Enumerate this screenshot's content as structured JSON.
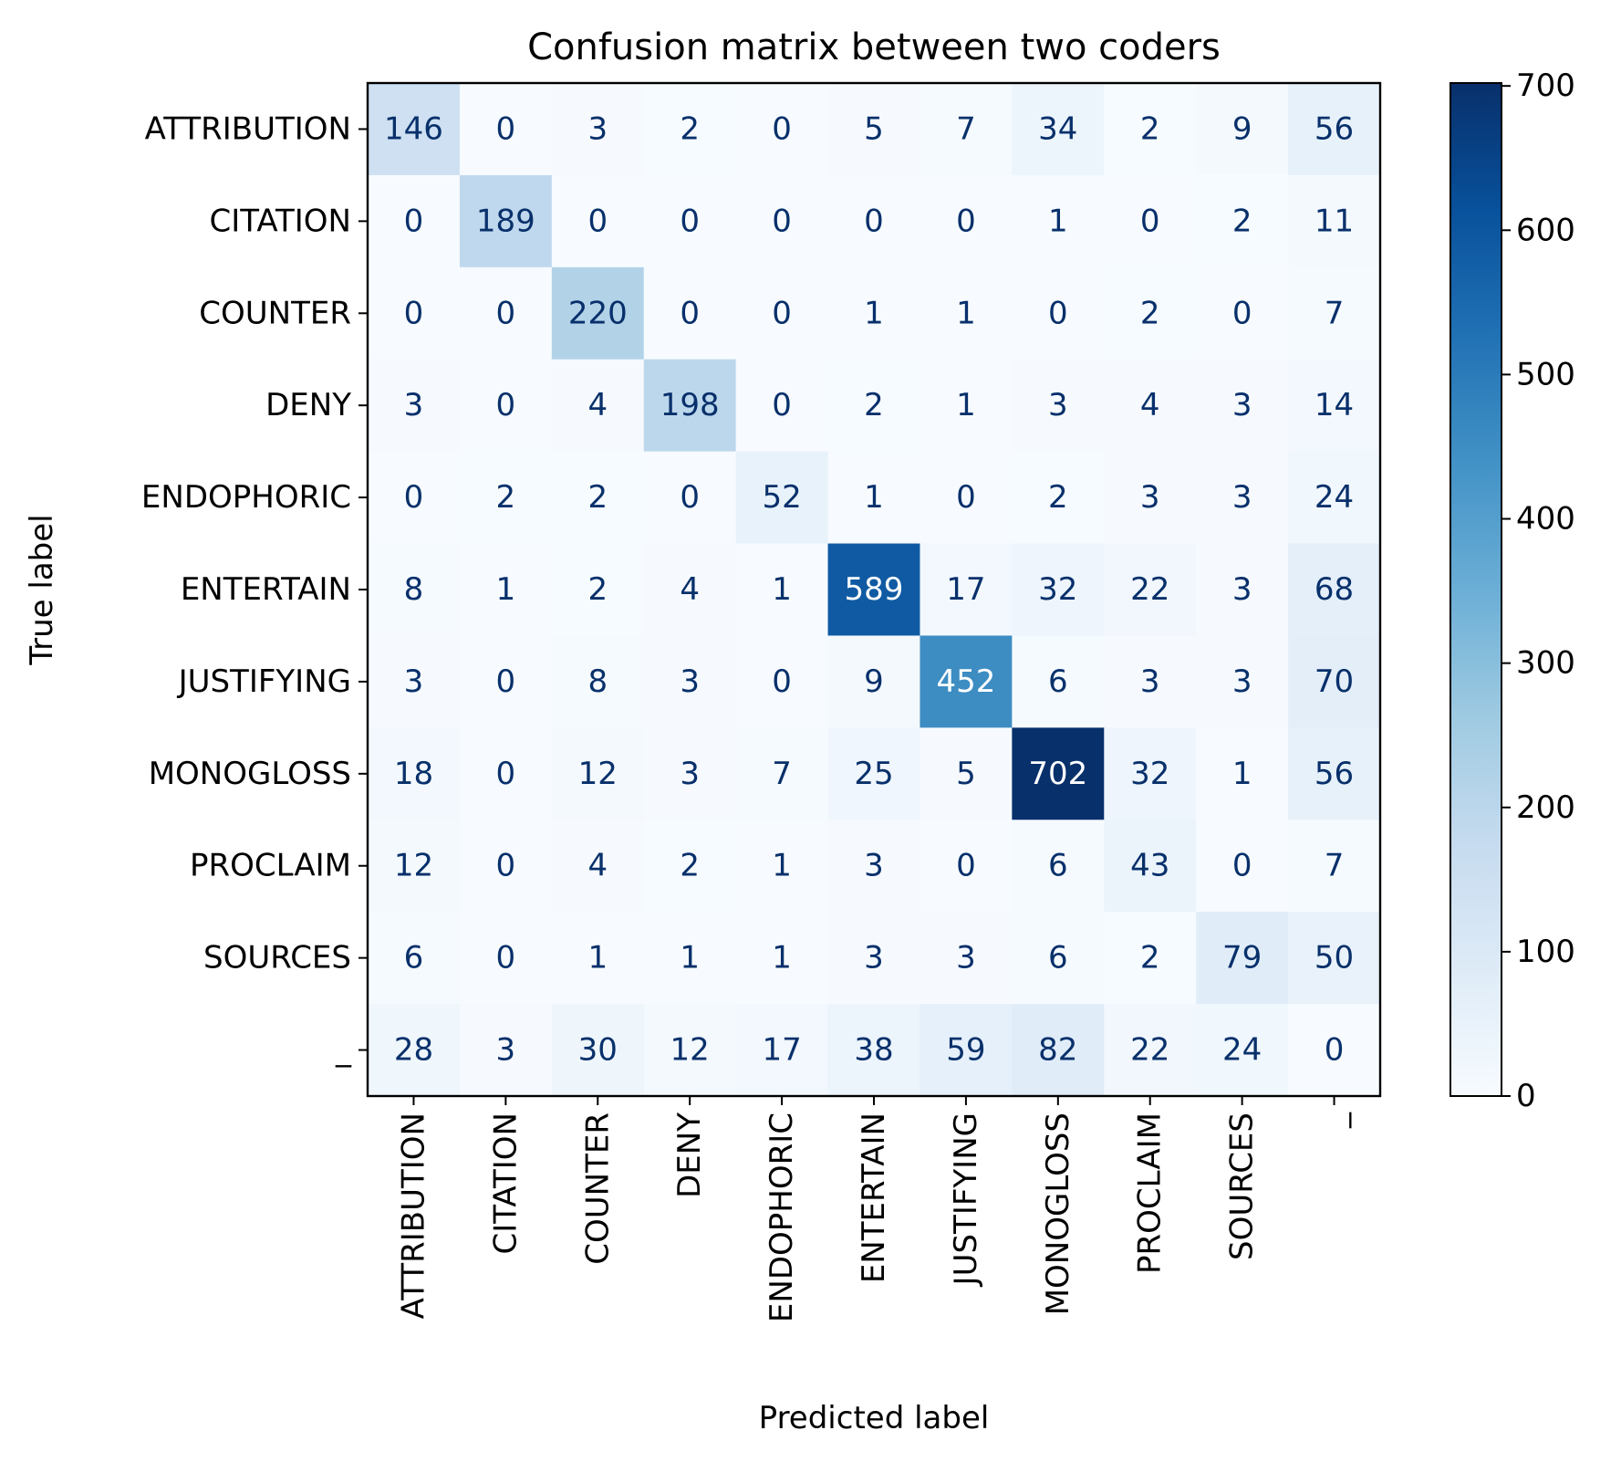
{
  "chart_data": {
    "type": "heatmap",
    "title": "Confusion matrix between two coders",
    "xlabel": "Predicted label",
    "ylabel": "True label",
    "colormap": "Blues",
    "labels": [
      "ATTRIBUTION",
      "CITATION",
      "COUNTER",
      "DENY",
      "ENDOPHORIC",
      "ENTERTAIN",
      "JUSTIFYING",
      "MONOGLOSS",
      "PROCLAIM",
      "SOURCES",
      "_"
    ],
    "matrix": [
      [
        146,
        0,
        3,
        2,
        0,
        5,
        7,
        34,
        2,
        9,
        56
      ],
      [
        0,
        189,
        0,
        0,
        0,
        0,
        0,
        1,
        0,
        2,
        11
      ],
      [
        0,
        0,
        220,
        0,
        0,
        1,
        1,
        0,
        2,
        0,
        7
      ],
      [
        3,
        0,
        4,
        198,
        0,
        2,
        1,
        3,
        4,
        3,
        14
      ],
      [
        0,
        2,
        2,
        0,
        52,
        1,
        0,
        2,
        3,
        3,
        24
      ],
      [
        8,
        1,
        2,
        4,
        1,
        589,
        17,
        32,
        22,
        3,
        68
      ],
      [
        3,
        0,
        8,
        3,
        0,
        9,
        452,
        6,
        3,
        3,
        70
      ],
      [
        18,
        0,
        12,
        3,
        7,
        25,
        5,
        702,
        32,
        1,
        56
      ],
      [
        12,
        0,
        4,
        2,
        1,
        3,
        0,
        6,
        43,
        0,
        7
      ],
      [
        6,
        0,
        1,
        1,
        1,
        3,
        3,
        6,
        2,
        79,
        50
      ],
      [
        28,
        3,
        30,
        12,
        17,
        38,
        59,
        82,
        22,
        24,
        0
      ]
    ],
    "colorbar": {
      "min": 0,
      "max": 702,
      "ticks": [
        0,
        100,
        200,
        300,
        400,
        500,
        600,
        700
      ]
    },
    "grid": false,
    "legend": "none",
    "text_colors": {
      "low": "#08306b",
      "high": "#ffffff"
    }
  }
}
